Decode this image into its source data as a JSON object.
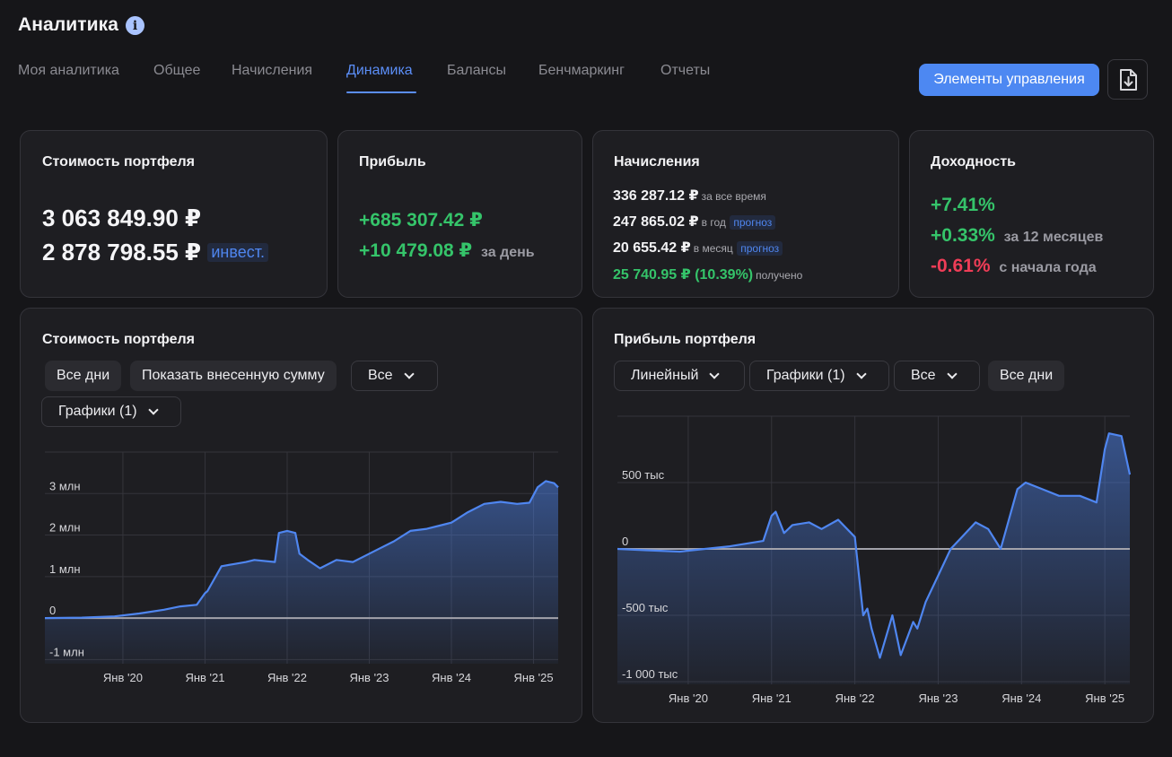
{
  "header": {
    "title": "Аналитика",
    "info_icon": "i",
    "tabs": [
      {
        "label": "Моя аналитика"
      },
      {
        "label": "Общее"
      },
      {
        "label": "Начисления"
      },
      {
        "label": "Динамика"
      },
      {
        "label": "Балансы"
      },
      {
        "label": "Бенчмаркинг"
      },
      {
        "label": "Отчеты"
      }
    ],
    "active_tab": "Динамика",
    "controls_button": "Элементы управления",
    "export_icon": "download-file-icon"
  },
  "cards": {
    "value": {
      "title": "Стоимость портфеля",
      "total": "3 063 849.90 ₽",
      "invested": "2 878 798.55 ₽",
      "invested_tag": "инвест."
    },
    "profit": {
      "title": "Прибыль",
      "total": "+685 307.42 ₽",
      "day": "+10 479.08 ₽",
      "day_label": "за день"
    },
    "accruals": {
      "title": "Начисления",
      "rows": [
        {
          "value": "336 287.12 ₽",
          "note": "за все время",
          "tag": ""
        },
        {
          "value": "247 865.02 ₽",
          "note": "в год",
          "tag": "прогноз"
        },
        {
          "value": "20 655.42 ₽",
          "note": "в месяц",
          "tag": "прогноз"
        },
        {
          "value": "25 740.95 ₽ (10.39%)",
          "note": "получено",
          "tag": ""
        }
      ]
    },
    "yield": {
      "title": "Доходность",
      "total": "+7.41%",
      "y12": "+0.33%",
      "y12_label": "за 12 месяцев",
      "ytd": "-0.61%",
      "ytd_label": "с начала года"
    }
  },
  "value_chart_panel": {
    "title": "Стоимость портфеля",
    "btn_all_days": "Все дни",
    "btn_show_invested": "Показать внесенную сумму",
    "dropdown_all": "Все",
    "dropdown_charts": "Графики (1)"
  },
  "profit_chart_panel": {
    "title": "Прибыль портфеля",
    "dropdown_linear": "Линейный",
    "dropdown_charts": "Графики (1)",
    "dropdown_all": "Все",
    "btn_all_days": "Все дни"
  },
  "colors": {
    "accent": "#4d88f2",
    "line": "#4f86f0",
    "green": "#35c46a",
    "red": "#ef3d57"
  },
  "chart_data": [
    {
      "type": "area",
      "y_ticks": [
        {
          "label": "3 млн",
          "value": 3000000
        },
        {
          "label": "2 млн",
          "value": 2000000
        },
        {
          "label": "1 млн",
          "value": 1000000
        },
        {
          "label": "0",
          "value": 0
        },
        {
          "label": "-1 млн",
          "value": -1000000
        }
      ],
      "x_ticks": [
        {
          "label": "Янв '20",
          "value": 2020.0
        },
        {
          "label": "Янв '21",
          "value": 2021.0
        },
        {
          "label": "Янв '22",
          "value": 2022.0
        },
        {
          "label": "Янв '23",
          "value": 2023.0
        },
        {
          "label": "Янв '24",
          "value": 2024.0
        },
        {
          "label": "Янв '25",
          "value": 2025.0
        }
      ],
      "xlim": [
        2019.05,
        2025.3
      ],
      "ylim": [
        -1100000,
        4000000
      ],
      "x": [
        2019.05,
        2019.5,
        2019.9,
        2020.2,
        2020.5,
        2020.7,
        2020.9,
        2021.0,
        2021.03,
        2021.2,
        2021.35,
        2021.5,
        2021.6,
        2021.85,
        2021.9,
        2022.0,
        2022.1,
        2022.15,
        2022.25,
        2022.4,
        2022.6,
        2022.8,
        2022.95,
        2023.1,
        2023.3,
        2023.5,
        2023.7,
        2023.9,
        2024.0,
        2024.2,
        2024.4,
        2024.6,
        2024.8,
        2024.95,
        2025.05,
        2025.15,
        2025.25,
        2025.3
      ],
      "y": [
        0,
        10000,
        40000,
        110000,
        200000,
        280000,
        320000,
        600000,
        650000,
        1250000,
        1300000,
        1350000,
        1400000,
        1350000,
        2050000,
        2100000,
        2050000,
        1550000,
        1400000,
        1200000,
        1400000,
        1350000,
        1500000,
        1650000,
        1850000,
        2100000,
        2150000,
        2250000,
        2300000,
        2550000,
        2750000,
        2800000,
        2750000,
        2780000,
        3150000,
        3300000,
        3250000,
        3150000
      ]
    },
    {
      "type": "area",
      "y_ticks": [
        {
          "label": "500 тыс",
          "value": 500000
        },
        {
          "label": "0",
          "value": 0
        },
        {
          "label": "-500 тыс",
          "value": -500000
        },
        {
          "label": "-1 000 тыс",
          "value": -1000000
        }
      ],
      "x_ticks": [
        {
          "label": "Янв '20",
          "value": 2020.0
        },
        {
          "label": "Янв '21",
          "value": 2021.0
        },
        {
          "label": "Янв '22",
          "value": 2022.0
        },
        {
          "label": "Янв '23",
          "value": 2023.0
        },
        {
          "label": "Янв '24",
          "value": 2024.0
        },
        {
          "label": "Янв '25",
          "value": 2025.0
        }
      ],
      "xlim": [
        2019.15,
        2025.3
      ],
      "ylim": [
        -1020000,
        1000000
      ],
      "x": [
        2019.15,
        2019.5,
        2019.9,
        2020.2,
        2020.5,
        2020.7,
        2020.9,
        2021.0,
        2021.05,
        2021.15,
        2021.25,
        2021.45,
        2021.6,
        2021.8,
        2022.0,
        2022.1,
        2022.15,
        2022.2,
        2022.3,
        2022.45,
        2022.55,
        2022.7,
        2022.75,
        2022.85,
        2023.0,
        2023.15,
        2023.3,
        2023.45,
        2023.6,
        2023.75,
        2023.95,
        2024.05,
        2024.25,
        2024.45,
        2024.7,
        2024.9,
        2025.0,
        2025.05,
        2025.2,
        2025.3
      ],
      "y": [
        0,
        -10000,
        -20000,
        0,
        20000,
        40000,
        60000,
        250000,
        280000,
        120000,
        180000,
        200000,
        150000,
        220000,
        90000,
        -500000,
        -450000,
        -600000,
        -820000,
        -500000,
        -800000,
        -550000,
        -600000,
        -400000,
        -200000,
        0,
        100000,
        200000,
        150000,
        0,
        450000,
        500000,
        450000,
        400000,
        400000,
        350000,
        750000,
        870000,
        850000,
        560000
      ]
    }
  ]
}
